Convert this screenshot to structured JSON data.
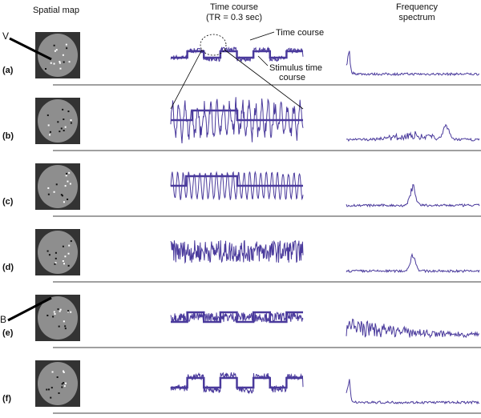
{
  "headers": {
    "spatial_map": "Spatial map",
    "time_course": "Time course",
    "time_course_sub": "(TR = 0.3 sec)",
    "frequency": "Frequency",
    "frequency_sub": "spectrum"
  },
  "rows": [
    {
      "label": "(a)"
    },
    {
      "label": "(b)"
    },
    {
      "label": "(c)"
    },
    {
      "label": "(d)"
    },
    {
      "label": "(e)"
    },
    {
      "label": "(f)"
    }
  ],
  "annotations": {
    "v": "V",
    "b": "B",
    "time_course": "Time course",
    "stimulus_line1": "Stimulus time",
    "stimulus_line2": "course"
  }
}
